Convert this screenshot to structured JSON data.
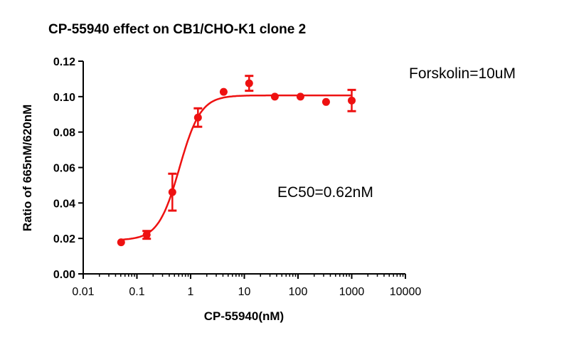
{
  "chart_data": {
    "type": "scatter",
    "title": "CP-55940 effect on CB1/CHO-K1 clone 2",
    "xlabel": "CP-55940(nM)",
    "ylabel": "Ratio of 665nM/620nM",
    "xscale": "log",
    "xlim": [
      0.01,
      10000
    ],
    "ylim": [
      0,
      0.12
    ],
    "xticks": [
      "0.01",
      "0.1",
      "1",
      "10",
      "100",
      "1000",
      "10000"
    ],
    "xtick_values": [
      0.01,
      0.1,
      1,
      10,
      100,
      1000,
      10000
    ],
    "yticks": [
      "0.00",
      "0.02",
      "0.04",
      "0.06",
      "0.08",
      "0.10",
      "0.12"
    ],
    "ytick_values": [
      0,
      0.02,
      0.04,
      0.06,
      0.08,
      0.1,
      0.12
    ],
    "grid": false,
    "color": "#ee1111",
    "series": [
      {
        "x": [
          0.0508,
          0.152,
          0.457,
          1.37,
          4.12,
          12.3,
          37.0,
          111,
          333,
          1000
        ],
        "y": [
          0.0178,
          0.022,
          0.0461,
          0.0882,
          0.1027,
          0.1075,
          0.1,
          0.1,
          0.097,
          0.0978
        ],
        "error": [
          0.0005,
          0.0022,
          0.0104,
          0.0052,
          0.0006,
          0.0042,
          0.0005,
          0.0005,
          0.0005,
          0.006
        ]
      }
    ],
    "fit": {
      "model": "four-parameter logistic",
      "bottom": 0.019,
      "top": 0.1007,
      "ec50": 0.62,
      "hill": 2.2
    },
    "annotations": [
      "Forskolin=10uM",
      "EC50=0.62nM"
    ]
  }
}
